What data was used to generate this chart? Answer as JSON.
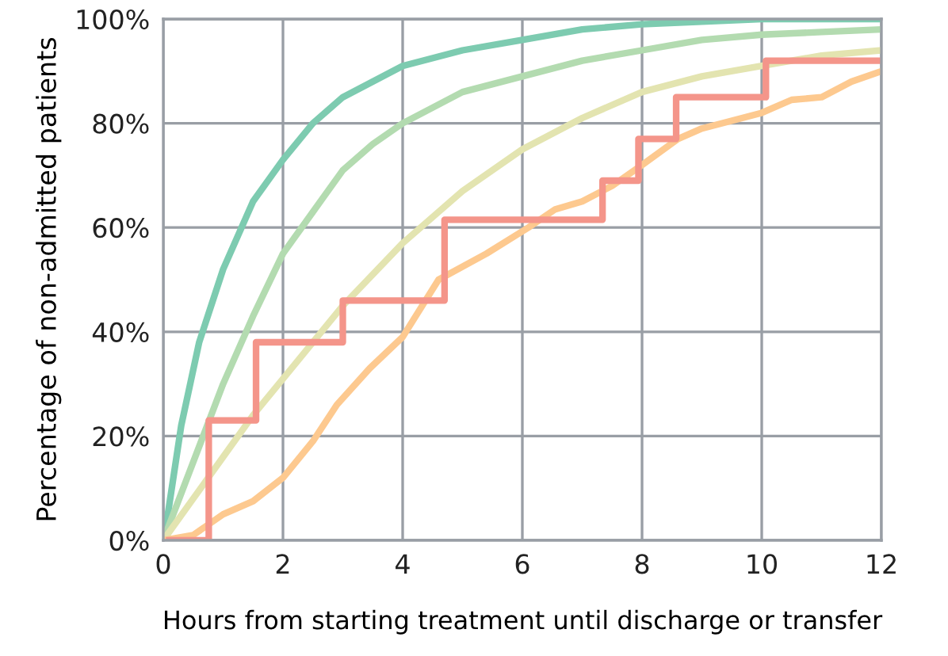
{
  "chart_data": {
    "type": "line",
    "xlabel": "Hours from starting treatment until discharge or transfer",
    "ylabel": "Percentage of non-admitted patients",
    "xlim": [
      0,
      12
    ],
    "xticks": [
      0,
      2,
      4,
      6,
      8,
      10,
      12
    ],
    "ylim": [
      0,
      100
    ],
    "yticks": [
      {
        "value": 0,
        "label": "0%"
      },
      {
        "value": 20,
        "label": "20%"
      },
      {
        "value": 40,
        "label": "40%"
      },
      {
        "value": 60,
        "label": "60%"
      },
      {
        "value": 80,
        "label": "80%"
      },
      {
        "value": 100,
        "label": "100%"
      }
    ],
    "grid": true,
    "line_style": "solid",
    "marker": "none",
    "series": [
      {
        "color": "#7dcbb0",
        "x": [
          0.05,
          0.3,
          0.6,
          1,
          1.5,
          2,
          2.5,
          3,
          3.5,
          4,
          5,
          6,
          7,
          8,
          9,
          10,
          12
        ],
        "values": [
          3,
          22,
          38,
          52,
          65,
          73,
          80,
          85,
          88,
          91,
          94,
          96,
          98,
          99,
          99.5,
          100,
          100
        ]
      },
      {
        "color": "#b3dbb0",
        "x": [
          0,
          0.5,
          1,
          1.5,
          2,
          2.5,
          3,
          3.5,
          4,
          5,
          6,
          7,
          8,
          9,
          10,
          11,
          12
        ],
        "values": [
          0,
          15,
          30,
          43,
          55,
          63,
          71,
          76,
          80,
          86,
          89,
          92,
          94,
          96,
          97,
          97.5,
          98
        ]
      },
      {
        "color": "#e3e4b0",
        "x": [
          0,
          0.5,
          1,
          1.5,
          2,
          3,
          4,
          5,
          6,
          7,
          8,
          9,
          10,
          11,
          12
        ],
        "values": [
          0,
          8,
          16,
          24,
          31,
          45,
          57,
          67,
          75,
          81,
          86,
          89,
          91,
          93,
          94
        ]
      },
      {
        "color": "#fdc98f",
        "x": [
          0,
          0.5,
          1,
          1.5,
          2,
          2.5,
          2.9,
          3.45,
          4,
          4.6,
          5.4,
          6.1,
          6.55,
          7,
          7.5,
          8,
          8.6,
          9,
          10,
          10.5,
          11,
          11.5,
          12
        ],
        "values": [
          0,
          1,
          5,
          7.5,
          12,
          19,
          26,
          33,
          39,
          50,
          55,
          60,
          63.5,
          65,
          68,
          72,
          77,
          79,
          82,
          84.5,
          85,
          88,
          90
        ]
      },
      {
        "type": "step",
        "color": "#f4958a",
        "x": [
          0.1,
          0.76,
          1.55,
          3.0,
          4.7,
          7.34,
          7.94,
          8.57,
          10.07,
          12
        ],
        "values": [
          0,
          23,
          38,
          46,
          61.5,
          69,
          77,
          85,
          92,
          92
        ]
      }
    ]
  }
}
